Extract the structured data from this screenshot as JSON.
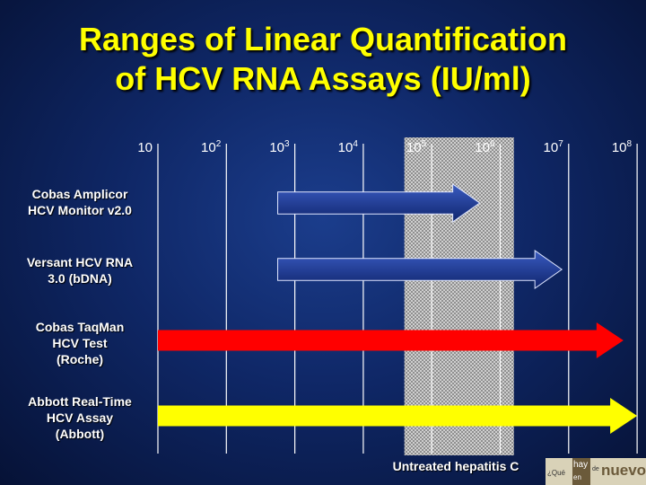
{
  "chart_data": {
    "type": "range-arrows",
    "title_lines": [
      "Ranges of Linear Quantification",
      "of HCV RNA Assays (IU/ml)"
    ],
    "x_scale": "log10",
    "ticks": [
      {
        "base": "10",
        "exp": "",
        "value": 1
      },
      {
        "base": "10",
        "exp": "2",
        "value": 2
      },
      {
        "base": "10",
        "exp": "3",
        "value": 3
      },
      {
        "base": "10",
        "exp": "4",
        "value": 4
      },
      {
        "base": "10",
        "exp": "5",
        "value": 5
      },
      {
        "base": "10",
        "exp": "6",
        "value": 6
      },
      {
        "base": "10",
        "exp": "7",
        "value": 7
      },
      {
        "base": "10",
        "exp": "8",
        "value": 8
      }
    ],
    "band": {
      "label": "Untreated hepatitis C",
      "start": 4.6,
      "end": 6.2
    },
    "assays": [
      {
        "label_lines": [
          "Cobas Amplicor",
          "HCV Monitor v2.0"
        ],
        "start": 2.75,
        "end": 5.7,
        "color": "#1f3f9e"
      },
      {
        "label_lines": [
          "Versant HCV RNA",
          "3.0 (bDNA)"
        ],
        "start": 2.75,
        "end": 6.9,
        "color": "#1f3f9e"
      },
      {
        "label_lines": [
          "Cobas TaqMan",
          "HCV Test",
          "(Roche)"
        ],
        "start": 1.0,
        "end": 7.8,
        "color": "#ff0000"
      },
      {
        "label_lines": [
          "Abbott Real-Time",
          "HCV Assay",
          "(Abbott)"
        ],
        "start": 1.0,
        "end": 8.0,
        "color": "#ffff00"
      }
    ]
  },
  "logo": {
    "question": "¿Qué",
    "hay": "hay",
    "en": "en",
    "de": "de",
    "nuevo": "nuevo"
  }
}
